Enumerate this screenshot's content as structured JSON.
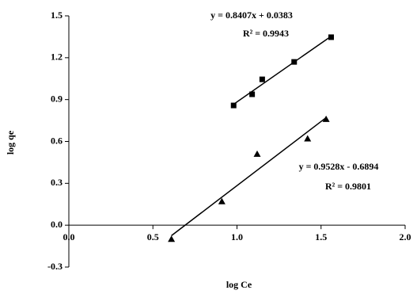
{
  "chart_data": {
    "type": "scatter",
    "xlabel": "log Ce",
    "ylabel": "log qe",
    "xlim": [
      0,
      2.0
    ],
    "xticks": [
      {
        "value": 0,
        "label": "0.0"
      },
      0.5,
      {
        "value": 1,
        "label": "1.0"
      },
      1.5,
      {
        "value": 2,
        "label": "2.0"
      }
    ],
    "ylim": [
      -0.3,
      1.5
    ],
    "yticks": [
      -0.3,
      {
        "value": 0,
        "label": "0.0"
      },
      0.3,
      0.6,
      0.9,
      1.2,
      1.5
    ],
    "trendline": true,
    "series": [
      {
        "color": "#000000",
        "marker": "square",
        "x": [
          0.98,
          1.09,
          1.15,
          1.34,
          1.56
        ],
        "values": [
          0.858,
          0.938,
          1.045,
          1.17,
          1.347
        ]
      },
      {
        "color": "#000000",
        "marker": "triangle",
        "x": [
          0.61,
          0.91,
          1.12,
          1.42,
          1.53
        ],
        "values": [
          -0.1,
          0.17,
          0.51,
          0.62,
          0.76
        ]
      }
    ],
    "annotations": [
      "y = 0.8407x + 0.0383",
      "R² = 0.9943",
      "y = 0.9528x - 0.6894",
      "R² = 0.9801"
    ]
  }
}
